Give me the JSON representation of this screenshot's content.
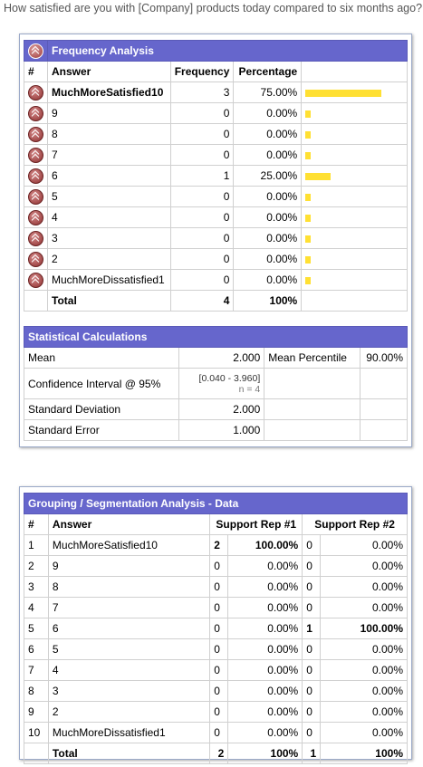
{
  "question": "How satisfied are you with [Company] products today compared to six months ago?",
  "frequency": {
    "title": "Frequency Analysis",
    "headers": {
      "num": "#",
      "answer": "Answer",
      "frequency": "Frequency",
      "percentage": "Percentage"
    },
    "rows": [
      {
        "answer": "MuchMoreSatisfied10",
        "frequency": "3",
        "percentage": "75.00%",
        "share": 0.75
      },
      {
        "answer": "9",
        "frequency": "0",
        "percentage": "0.00%",
        "share": 0
      },
      {
        "answer": "8",
        "frequency": "0",
        "percentage": "0.00%",
        "share": 0
      },
      {
        "answer": "7",
        "frequency": "0",
        "percentage": "0.00%",
        "share": 0
      },
      {
        "answer": "6",
        "frequency": "1",
        "percentage": "25.00%",
        "share": 0.25
      },
      {
        "answer": "5",
        "frequency": "0",
        "percentage": "0.00%",
        "share": 0
      },
      {
        "answer": "4",
        "frequency": "0",
        "percentage": "0.00%",
        "share": 0
      },
      {
        "answer": "3",
        "frequency": "0",
        "percentage": "0.00%",
        "share": 0
      },
      {
        "answer": "2",
        "frequency": "0",
        "percentage": "0.00%",
        "share": 0
      },
      {
        "answer": "MuchMoreDissatisfied1",
        "frequency": "0",
        "percentage": "0.00%",
        "share": 0
      }
    ],
    "total": {
      "label": "Total",
      "frequency": "4",
      "percentage": "100%"
    },
    "bar_color": "#ffe033"
  },
  "stats": {
    "title": "Statistical Calculations",
    "mean_label": "Mean",
    "mean_value": "2.000",
    "mean_pct_label": "Mean Percentile",
    "mean_pct_value": "90.00%",
    "ci_label": "Confidence Interval @ 95%",
    "ci_value": "[0.040 - 3.960]",
    "ci_n": "n = 4",
    "sd_label": "Standard Deviation",
    "sd_value": "2.000",
    "se_label": "Standard Error",
    "se_value": "1.000"
  },
  "grouping": {
    "title": "Grouping / Segmentation Analysis - Data",
    "headers": {
      "num": "#",
      "answer": "Answer",
      "rep1": "Support Rep #1",
      "rep2": "Support Rep #2"
    },
    "rows": [
      {
        "num": "1",
        "answer": "MuchMoreSatisfied10",
        "r1c": "2",
        "r1p": "100.00%",
        "r2c": "0",
        "r2p": "0.00%",
        "b1": true,
        "b2": false
      },
      {
        "num": "2",
        "answer": "9",
        "r1c": "0",
        "r1p": "0.00%",
        "r2c": "0",
        "r2p": "0.00%",
        "b1": false,
        "b2": false
      },
      {
        "num": "3",
        "answer": "8",
        "r1c": "0",
        "r1p": "0.00%",
        "r2c": "0",
        "r2p": "0.00%",
        "b1": false,
        "b2": false
      },
      {
        "num": "4",
        "answer": "7",
        "r1c": "0",
        "r1p": "0.00%",
        "r2c": "0",
        "r2p": "0.00%",
        "b1": false,
        "b2": false
      },
      {
        "num": "5",
        "answer": "6",
        "r1c": "0",
        "r1p": "0.00%",
        "r2c": "1",
        "r2p": "100.00%",
        "b1": false,
        "b2": true
      },
      {
        "num": "6",
        "answer": "5",
        "r1c": "0",
        "r1p": "0.00%",
        "r2c": "0",
        "r2p": "0.00%",
        "b1": false,
        "b2": false
      },
      {
        "num": "7",
        "answer": "4",
        "r1c": "0",
        "r1p": "0.00%",
        "r2c": "0",
        "r2p": "0.00%",
        "b1": false,
        "b2": false
      },
      {
        "num": "8",
        "answer": "3",
        "r1c": "0",
        "r1p": "0.00%",
        "r2c": "0",
        "r2p": "0.00%",
        "b1": false,
        "b2": false
      },
      {
        "num": "9",
        "answer": "2",
        "r1c": "0",
        "r1p": "0.00%",
        "r2c": "0",
        "r2p": "0.00%",
        "b1": false,
        "b2": false
      },
      {
        "num": "10",
        "answer": "MuchMoreDissatisfied1",
        "r1c": "0",
        "r1p": "0.00%",
        "r2c": "0",
        "r2p": "0.00%",
        "b1": false,
        "b2": false
      }
    ],
    "total": {
      "label": "Total",
      "r1c": "2",
      "r1p": "100%",
      "r2c": "1",
      "r2p": "100%"
    }
  },
  "icons": {
    "expand": "double-chevron-up-icon"
  },
  "colors": {
    "header_bg": "#6666cc",
    "border": "#d0d0d0"
  }
}
